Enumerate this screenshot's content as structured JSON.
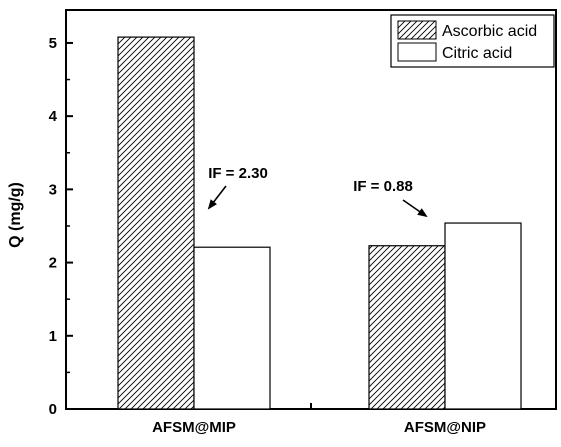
{
  "chart_data": {
    "type": "bar",
    "categories": [
      "AFSM@MIP",
      "AFSM@NIP"
    ],
    "series": [
      {
        "name": "Ascorbic acid",
        "values": [
          5.08,
          2.23
        ],
        "pattern": "hatch"
      },
      {
        "name": "Citric acid",
        "values": [
          2.21,
          2.54
        ],
        "pattern": "solid"
      }
    ],
    "ylabel": "Q (mg/g)",
    "ylim": [
      0,
      5.45
    ],
    "yticks": [
      0,
      1,
      2,
      3,
      4,
      5
    ],
    "legend": "top-right",
    "grid": false,
    "annotations": [
      {
        "text": "IF = 2.30",
        "category": "AFSM@MIP",
        "target_value": 2.75
      },
      {
        "text": "IF = 0.88",
        "category": "AFSM@NIP",
        "target_value": 2.65
      }
    ],
    "colors": {
      "bar_fill": "#ffffff",
      "stroke": "#000000"
    }
  }
}
